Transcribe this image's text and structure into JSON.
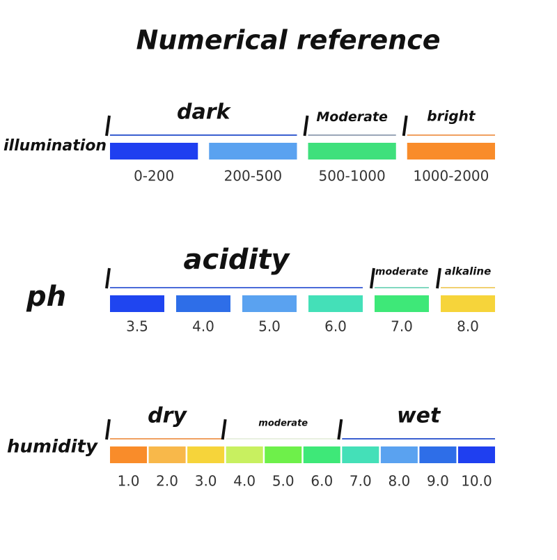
{
  "title": "Numerical reference",
  "sections": [
    {
      "label": "illumination",
      "groups": [
        {
          "label": "dark",
          "line_color": "#3a5fd0",
          "swatches": [
            {
              "label": "0-200",
              "color": "#1f3ff0"
            },
            {
              "label": "200-500",
              "color": "#5aa2f0"
            }
          ]
        },
        {
          "label": "Moderate",
          "line_color": "#9aa6b8",
          "swatches": [
            {
              "label": "500-1000",
              "color": "#3fe07c"
            }
          ]
        },
        {
          "label": "bright",
          "line_color": "#f0a060",
          "swatches": [
            {
              "label": "1000-2000",
              "color": "#f98c2a"
            }
          ]
        }
      ]
    },
    {
      "label": "ph",
      "groups": [
        {
          "label": "acidity",
          "line_color": "#4a6ad8",
          "swatches": [
            {
              "label": "3.5",
              "color": "#1f45f0"
            },
            {
              "label": "4.0",
              "color": "#2e6ee8"
            },
            {
              "label": "5.0",
              "color": "#5aa2f0"
            },
            {
              "label": "6.0",
              "color": "#44e0b8"
            }
          ]
        },
        {
          "label": "moderate",
          "line_color": "#80d8c0",
          "swatches": [
            {
              "label": "7.0",
              "color": "#3ee878"
            }
          ]
        },
        {
          "label": "alkaline",
          "line_color": "#f0d070",
          "swatches": [
            {
              "label": "8.0",
              "color": "#f6d43a"
            }
          ]
        }
      ]
    },
    {
      "label": "humidity",
      "groups": [
        {
          "label": "dry",
          "line_color": "#f0a060",
          "swatches": [
            {
              "label": "1.0",
              "color": "#f98c2a"
            },
            {
              "label": "2.0",
              "color": "#f8b84a"
            },
            {
              "label": "3.0",
              "color": "#f6d43a"
            }
          ]
        },
        {
          "label": "moderate",
          "line_color": "#e8f0e0",
          "swatches": [
            {
              "label": "4.0",
              "color": "#c8f060"
            },
            {
              "label": "5.0",
              "color": "#6ef04a"
            },
            {
              "label": "6.0",
              "color": "#3ee878"
            }
          ]
        },
        {
          "label": "wet",
          "line_color": "#3a5fd0",
          "swatches": [
            {
              "label": "7.0",
              "color": "#44e0b8"
            },
            {
              "label": "8.0",
              "color": "#5aa2f0"
            },
            {
              "label": "9.0",
              "color": "#2e6ee8"
            },
            {
              "label": "10.0",
              "color": "#1f3ff0"
            }
          ]
        }
      ]
    }
  ]
}
